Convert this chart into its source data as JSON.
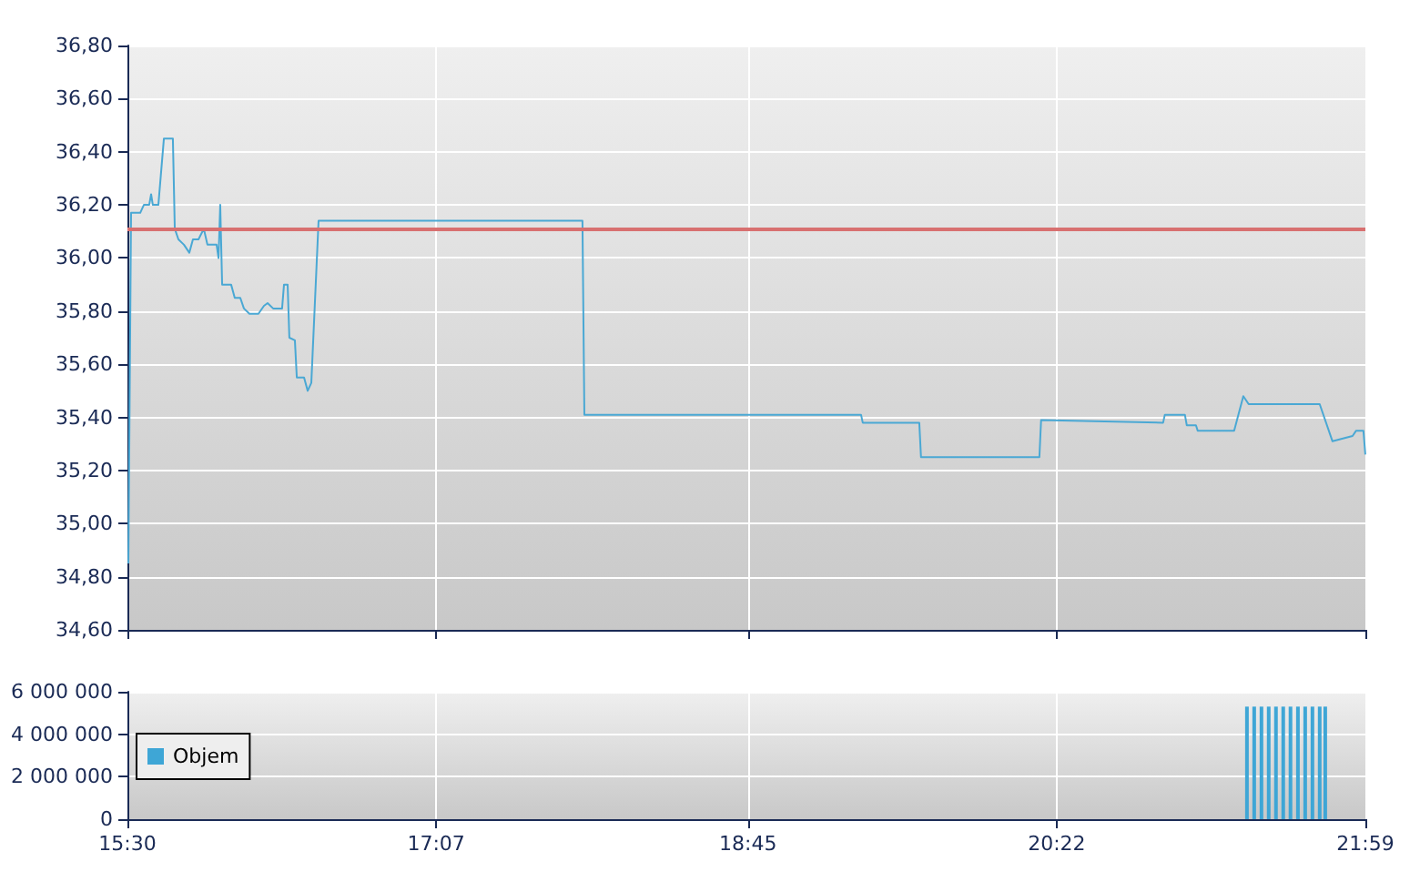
{
  "chart_data": [
    {
      "type": "line",
      "x": [
        15.505,
        15.519,
        15.567,
        15.586,
        15.614,
        15.624,
        15.633,
        15.662,
        15.691,
        15.738,
        15.748,
        15.767,
        15.796,
        15.824,
        15.843,
        15.872,
        15.9,
        15.919,
        15.967,
        15.977,
        15.986,
        15.996,
        16.043,
        16.062,
        16.091,
        16.11,
        16.139,
        16.186,
        16.215,
        16.234,
        16.263,
        16.31,
        16.32,
        16.339,
        16.348,
        16.377,
        16.387,
        16.425,
        16.444,
        16.463,
        16.501,
        17.883,
        17.893,
        19.342,
        19.351,
        19.647,
        19.656,
        20.276,
        20.285,
        20.924,
        20.933,
        21.038,
        21.048,
        21.096,
        21.105,
        21.296,
        21.344,
        21.372,
        21.744,
        21.811,
        21.916,
        21.935,
        21.973,
        21.983
      ],
      "series": [
        {
          "color": "#4aa8d4",
          "values": [
            34.85,
            36.17,
            36.17,
            36.2,
            36.2,
            36.24,
            36.2,
            36.2,
            36.45,
            36.45,
            36.11,
            36.07,
            36.05,
            36.02,
            36.07,
            36.07,
            36.11,
            36.05,
            36.05,
            36.0,
            36.2,
            35.9,
            35.9,
            35.85,
            35.85,
            35.81,
            35.79,
            35.79,
            35.82,
            35.83,
            35.81,
            35.81,
            35.9,
            35.9,
            35.7,
            35.69,
            35.55,
            35.55,
            35.5,
            35.53,
            36.14,
            36.14,
            35.41,
            35.41,
            35.38,
            35.38,
            35.25,
            35.25,
            35.39,
            35.38,
            35.41,
            35.41,
            35.37,
            35.37,
            35.35,
            35.35,
            35.48,
            35.45,
            35.45,
            35.31,
            35.33,
            35.35,
            35.35,
            35.26
          ]
        }
      ],
      "xlim": [
        15.5,
        21.9833
      ],
      "xticks": [
        {
          "value": 15.5,
          "label": null
        },
        {
          "value": 17.1167,
          "label": null
        },
        {
          "value": 18.75,
          "label": null
        },
        {
          "value": 20.3667,
          "label": null
        },
        {
          "value": 21.9833,
          "label": null
        }
      ],
      "ylim": [
        34.6,
        36.8
      ],
      "yticks": [
        {
          "value": 34.6,
          "label": "34,60"
        },
        {
          "value": 34.8,
          "label": "34,80"
        },
        {
          "value": 35.0,
          "label": "35,00"
        },
        {
          "value": 35.2,
          "label": "35,20"
        },
        {
          "value": 35.4,
          "label": "35,40"
        },
        {
          "value": 35.6,
          "label": "35,60"
        },
        {
          "value": 35.8,
          "label": "35,80"
        },
        {
          "value": 36.0,
          "label": "36,00"
        },
        {
          "value": 36.2,
          "label": "36,20"
        },
        {
          "value": 36.4,
          "label": "36,40"
        },
        {
          "value": 36.6,
          "label": "36,60"
        },
        {
          "value": 36.8,
          "label": "36,80"
        }
      ],
      "ref_lines": [
        {
          "axis": "y",
          "value": 36.11,
          "color": "#d87070"
        }
      ],
      "grid": true,
      "tick_labels": "y",
      "marker": "none",
      "line_style": "solid"
    },
    {
      "type": "bar",
      "x": [
        21.363,
        21.401,
        21.439,
        21.477,
        21.515,
        21.553,
        21.591,
        21.63,
        21.668,
        21.706,
        21.744,
        21.773
      ],
      "series": [
        {
          "name": "Objem",
          "color": "#3ea6d6",
          "values": [
            5300000,
            5300000,
            5300000,
            5300000,
            5300000,
            5300000,
            5300000,
            5300000,
            5300000,
            5300000,
            5300000,
            5300000
          ]
        }
      ],
      "xlim": [
        15.5,
        21.9833
      ],
      "xticks": [
        {
          "value": 15.5,
          "label": "15:30"
        },
        {
          "value": 17.1167,
          "label": "17:07"
        },
        {
          "value": 18.75,
          "label": "18:45"
        },
        {
          "value": 20.3667,
          "label": "20:22"
        },
        {
          "value": 21.9833,
          "label": "21:59"
        }
      ],
      "ylim": [
        0,
        6000000
      ],
      "yticks": [
        {
          "value": 0,
          "label": "0"
        },
        {
          "value": 2000000,
          "label": "2 000 000"
        },
        {
          "value": 4000000,
          "label": "4 000 000"
        },
        {
          "value": 6000000,
          "label": "6 000 000"
        }
      ],
      "grid": true,
      "legend": "left"
    }
  ]
}
